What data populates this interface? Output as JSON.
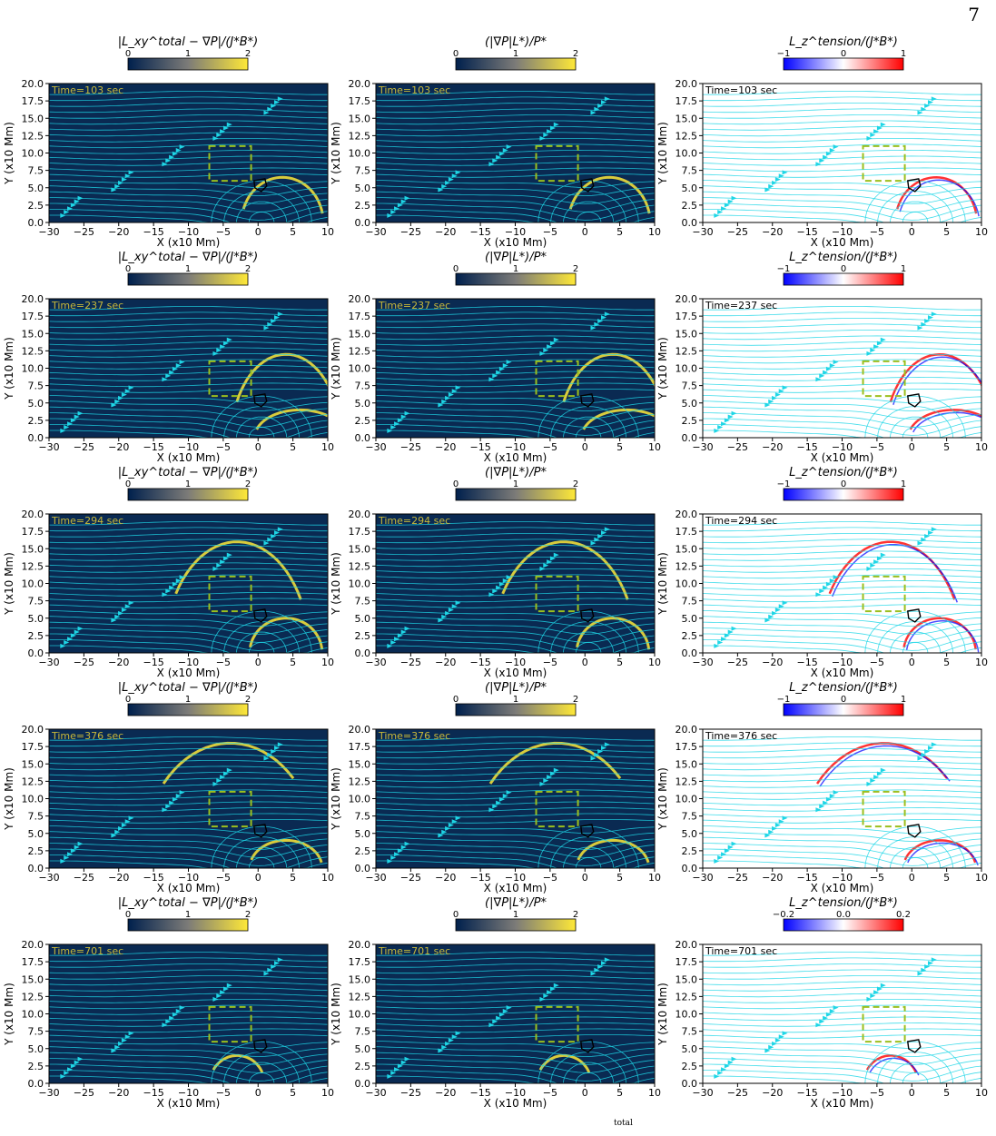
{
  "page_number": "7",
  "colorbar_titles": {
    "col1": "|L_xy^total − ∇P|/(J*B*)",
    "col2": "(|∇P|L*)/P*",
    "col3": "L_z^tension/(J*B*)"
  },
  "colorbar_ticks": {
    "col1": [
      "0",
      "1",
      "2"
    ],
    "col2": [
      "0",
      "1",
      "2"
    ],
    "col3": [
      "−1",
      "0",
      "1"
    ],
    "col3_last": [
      "−0.2",
      "0.0",
      "0.2"
    ]
  },
  "times": [
    "Time=103 sec",
    "Time=237 sec",
    "Time=294 sec",
    "Time=376 sec",
    "Time=701 sec"
  ],
  "xlabel": "X (x10 Mm)",
  "ylabel": "Y (x10 Mm)",
  "xticks": [
    "−30",
    "−25",
    "−20",
    "−15",
    "−10",
    "−5",
    "0",
    "5",
    "10"
  ],
  "yticks": [
    "0.0",
    "2.5",
    "5.0",
    "7.5",
    "10.0",
    "12.5",
    "15.0",
    "17.5",
    "20.0"
  ],
  "caption_fragment": "total",
  "colors": {
    "panel_dark": "#0a2a52",
    "panel_light": "#ffffff",
    "streamline": "#1fd6e6",
    "time_dark": "#c8b83a",
    "time_light": "#000000",
    "box": "#9bbf1e",
    "cividis_start": "#00204d",
    "cividis_mid": "#7c7b78",
    "cividis_end": "#fee838",
    "bwr_neg": "#0000ff",
    "bwr_pos": "#ff0000"
  },
  "chart_data": {
    "type": "heatmap",
    "rows": 5,
    "cols": 3,
    "xlim": [
      -30,
      10
    ],
    "ylim": [
      0,
      20
    ],
    "box_x": [
      -7,
      -1
    ],
    "box_y": [
      6,
      11
    ],
    "colorbar_ranges": [
      [
        0,
        2
      ],
      [
        0,
        2
      ],
      [
        -1,
        1
      ]
    ],
    "colorbar_range_last_row_col3": [
      -0.2,
      0.2
    ]
  }
}
